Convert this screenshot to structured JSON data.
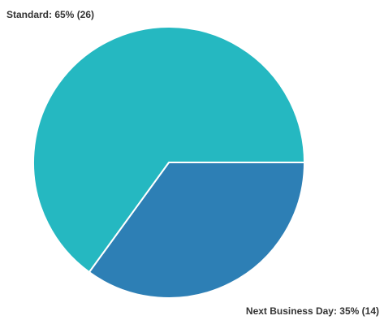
{
  "chart_data": {
    "type": "pie",
    "slices": [
      {
        "label": "Standard",
        "percent": 65,
        "count": 26,
        "color": "#25B8C1",
        "display_label": "Standard: 65% (26)"
      },
      {
        "label": "Next Business Day",
        "percent": 35,
        "count": 14,
        "color": "#2D7FB5",
        "display_label": "Next Business Day: 35% (14)"
      }
    ],
    "start_angle_deg": 0,
    "direction": "clockwise",
    "slice_border_color": "#ffffff",
    "legend": "none"
  }
}
